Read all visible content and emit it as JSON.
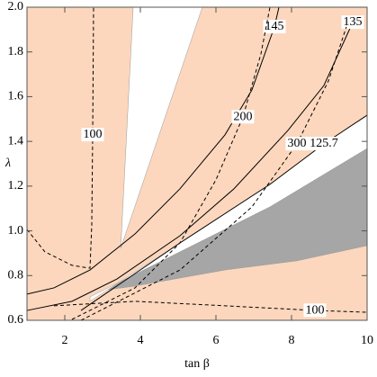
{
  "chart_data": {
    "type": "contour",
    "x_label": "tan β",
    "y_label": "λ",
    "xlim": [
      1,
      10
    ],
    "ylim": [
      0.6,
      2.0
    ],
    "xticks": [
      2,
      4,
      6,
      8,
      10
    ],
    "yticks": [
      0.6,
      0.8,
      {
        "value": 1,
        "label": "1.0"
      },
      1.2,
      1.4,
      1.6,
      1.8,
      {
        "value": 2,
        "label": "2.0"
      }
    ],
    "background": "#fcd7bd",
    "regions": [
      {
        "color": "#ffffff",
        "x": [
          3.81,
          5.64,
          3.48
        ],
        "y": [
          2.0,
          2.0,
          0.922
        ]
      },
      {
        "color": "#ffffff",
        "x": [
          10,
          10,
          7.429,
          5.048,
          3.619,
          2.667,
          2.667,
          5.048,
          7.429,
          8.857
        ],
        "y": [
          1.517,
          1.368,
          1.107,
          0.906,
          0.785,
          0.705,
          0.685,
          0.946,
          1.208,
          1.389
        ]
      },
      {
        "color": "#a6a6a6",
        "x": [
          10,
          7.429,
          5.048,
          3.619,
          3.143,
          3.857,
          6.238,
          8.143,
          10
        ],
        "y": [
          1.368,
          1.107,
          0.906,
          0.785,
          0.737,
          0.753,
          0.825,
          0.866,
          0.934
        ]
      }
    ],
    "contours": [
      {
        "label": "145",
        "dashed": false,
        "x": [
          1,
          1.714,
          2.667,
          3.857,
          5.048,
          6.238,
          6.952,
          7.548,
          7.667
        ],
        "y": [
          0.717,
          0.745,
          0.825,
          0.986,
          1.188,
          1.429,
          1.63,
          1.912,
          2.0
        ]
      },
      {
        "label": "135",
        "dashed": false,
        "x": [
          1,
          2.19,
          3.381,
          5.048,
          6.476,
          7.905,
          8.857,
          9.619
        ],
        "y": [
          0.644,
          0.685,
          0.785,
          0.978,
          1.188,
          1.449,
          1.65,
          1.932
        ]
      },
      {
        "label": "100",
        "dashed": true,
        "x": [
          1,
          1.476,
          2.19,
          2.667,
          2.714,
          2.738,
          2.762
        ],
        "y": [
          1.006,
          0.906,
          0.846,
          0.833,
          1.027,
          1.429,
          2.0
        ]
      },
      {
        "label": "200",
        "dashed": true,
        "x": [
          2.19,
          3.857,
          5.048,
          6.0,
          6.714,
          7.19,
          7.429
        ],
        "y": [
          0.604,
          0.745,
          0.946,
          1.228,
          1.509,
          1.791,
          2.0
        ]
      },
      {
        "label": "300",
        "dashed": true,
        "x": [
          2.429,
          5.048,
          6.952,
          8.143,
          8.976,
          9.452
        ],
        "y": [
          0.6,
          0.825,
          1.107,
          1.389,
          1.67,
          1.912
        ]
      },
      {
        "label": "125.7",
        "dashed": false,
        "x": [
          2.429,
          5.048,
          7.429,
          8.857,
          10
        ],
        "y": [
          0.644,
          0.946,
          1.208,
          1.389,
          1.517
        ]
      },
      {
        "label": "100",
        "dashed": true,
        "x": [
          1.714,
          3.857,
          6.238,
          8.619,
          10
        ],
        "y": [
          0.665,
          0.685,
          0.665,
          0.644,
          0.636
        ]
      }
    ]
  }
}
